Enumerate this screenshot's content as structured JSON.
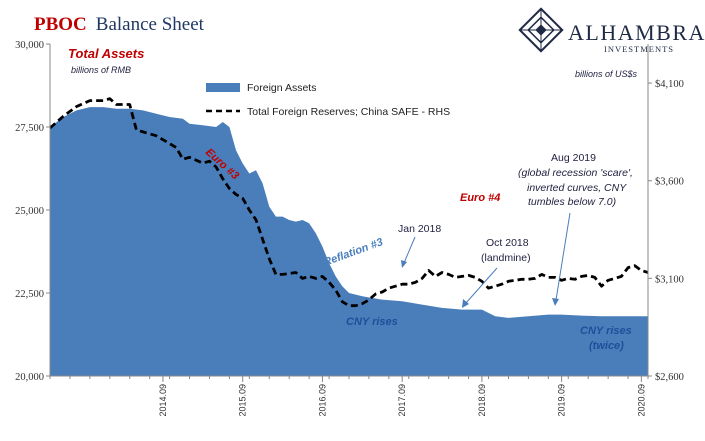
{
  "title": {
    "part1": "PBOC",
    "part2": "Balance Sheet"
  },
  "logo": {
    "name": "ALHAMBRA",
    "subtitle": "INVESTMENTS",
    "icon": "diamond-lattice-icon"
  },
  "left_axis": {
    "label": "Total Assets",
    "sublabel": "billions of RMB"
  },
  "right_axis": {
    "label": "billions of US$s"
  },
  "legend": {
    "area_label": "Foreign Assets",
    "line_label": "Total Foreign Reserves; China SAFE - RHS"
  },
  "annotations": {
    "euro3": "Euro #3",
    "euro4": "Euro #4",
    "reflation3": "Reflation #3",
    "jan2018": "Jan 2018",
    "oct2018_line1": "Oct 2018",
    "oct2018_line2": "(landmine)",
    "aug2019_line1": "Aug 2019",
    "aug2019_line2": "(global recession 'scare',",
    "aug2019_line3": "inverted curves, CNY",
    "aug2019_line4": "tumbles below 7.0)",
    "cny_rises1": "CNY rises",
    "cny_rises2_line1": "CNY rises",
    "cny_rises2_line2": "(twice)"
  },
  "colors": {
    "area": "#4a7ebb",
    "line": "#000000",
    "title_red": "#c00000",
    "title_blue": "#1f3864"
  },
  "chart_data": {
    "type": "area",
    "x_unit": "month",
    "x_range": [
      "2013-04",
      "2020-10"
    ],
    "left_ylim": [
      20000,
      30000
    ],
    "right_ylim": [
      2600,
      4300
    ],
    "left_ticks": [
      "20,000",
      "22,500",
      "25,000",
      "27,500",
      "30,000"
    ],
    "right_ticks": [
      "$2,600",
      "$3,100",
      "$3,600",
      "$4,100"
    ],
    "x_ticks": [
      "2014.09",
      "2015.09",
      "2016.09",
      "2017.09",
      "2018.09",
      "2019.09",
      "2020.09"
    ],
    "grid": false,
    "legend_position": "top-left",
    "series": [
      {
        "name": "Foreign Assets",
        "axis": "left",
        "kind": "area",
        "points": [
          [
            "2013-04",
            27500
          ],
          [
            "2013-06",
            27800
          ],
          [
            "2013-08",
            28000
          ],
          [
            "2013-10",
            28100
          ],
          [
            "2013-12",
            28100
          ],
          [
            "2014-02",
            28050
          ],
          [
            "2014-04",
            28050
          ],
          [
            "2014-06",
            28000
          ],
          [
            "2014-08",
            27900
          ],
          [
            "2014-10",
            27800
          ],
          [
            "2014-12",
            27750
          ],
          [
            "2015-01",
            27600
          ],
          [
            "2015-03",
            27550
          ],
          [
            "2015-05",
            27500
          ],
          [
            "2015-06",
            27650
          ],
          [
            "2015-07",
            27500
          ],
          [
            "2015-08",
            26800
          ],
          [
            "2015-09",
            26400
          ],
          [
            "2015-10",
            26100
          ],
          [
            "2015-11",
            26200
          ],
          [
            "2015-12",
            25800
          ],
          [
            "2016-01",
            25100
          ],
          [
            "2016-02",
            24800
          ],
          [
            "2016-03",
            24800
          ],
          [
            "2016-04",
            24700
          ],
          [
            "2016-05",
            24650
          ],
          [
            "2016-06",
            24700
          ],
          [
            "2016-07",
            24600
          ],
          [
            "2016-08",
            24300
          ],
          [
            "2016-09",
            23900
          ],
          [
            "2016-10",
            23400
          ],
          [
            "2016-11",
            23000
          ],
          [
            "2016-12",
            22700
          ],
          [
            "2017-01",
            22500
          ],
          [
            "2017-03",
            22400
          ],
          [
            "2017-06",
            22300
          ],
          [
            "2017-09",
            22250
          ],
          [
            "2017-12",
            22150
          ],
          [
            "2018-03",
            22050
          ],
          [
            "2018-06",
            22000
          ],
          [
            "2018-09",
            22000
          ],
          [
            "2018-11",
            21800
          ],
          [
            "2019-01",
            21750
          ],
          [
            "2019-04",
            21800
          ],
          [
            "2019-07",
            21850
          ],
          [
            "2019-09",
            21850
          ],
          [
            "2019-12",
            21820
          ],
          [
            "2020-03",
            21800
          ],
          [
            "2020-06",
            21800
          ],
          [
            "2020-08",
            21800
          ],
          [
            "2020-10",
            21800
          ]
        ]
      },
      {
        "name": "Total Foreign Reserves; China SAFE - RHS",
        "axis": "right",
        "kind": "line",
        "points": [
          [
            "2013-04",
            3870
          ],
          [
            "2013-06",
            3930
          ],
          [
            "2013-08",
            3980
          ],
          [
            "2013-10",
            4010
          ],
          [
            "2013-12",
            4010
          ],
          [
            "2014-01",
            4020
          ],
          [
            "2014-02",
            3990
          ],
          [
            "2014-04",
            3990
          ],
          [
            "2014-05",
            3860
          ],
          [
            "2014-06",
            3850
          ],
          [
            "2014-08",
            3830
          ],
          [
            "2014-09",
            3810
          ],
          [
            "2014-10",
            3790
          ],
          [
            "2014-11",
            3770
          ],
          [
            "2014-12",
            3710
          ],
          [
            "2015-01",
            3720
          ],
          [
            "2015-03",
            3690
          ],
          [
            "2015-04",
            3700
          ],
          [
            "2015-05",
            3670
          ],
          [
            "2015-06",
            3610
          ],
          [
            "2015-07",
            3560
          ],
          [
            "2015-08",
            3530
          ],
          [
            "2015-09",
            3510
          ],
          [
            "2015-10",
            3450
          ],
          [
            "2015-11",
            3400
          ],
          [
            "2015-12",
            3300
          ],
          [
            "2016-01",
            3200
          ],
          [
            "2016-02",
            3120
          ],
          [
            "2016-03",
            3120
          ],
          [
            "2016-04",
            3125
          ],
          [
            "2016-05",
            3130
          ],
          [
            "2016-06",
            3100
          ],
          [
            "2016-07",
            3110
          ],
          [
            "2016-08",
            3100
          ],
          [
            "2016-09",
            3110
          ],
          [
            "2016-10",
            3080
          ],
          [
            "2016-11",
            3040
          ],
          [
            "2016-12",
            2980
          ],
          [
            "2017-01",
            2960
          ],
          [
            "2017-02",
            2960
          ],
          [
            "2017-03",
            2970
          ],
          [
            "2017-04",
            2990
          ],
          [
            "2017-05",
            3020
          ],
          [
            "2017-06",
            3030
          ],
          [
            "2017-07",
            3050
          ],
          [
            "2017-08",
            3060
          ],
          [
            "2017-09",
            3070
          ],
          [
            "2017-10",
            3070
          ],
          [
            "2017-11",
            3080
          ],
          [
            "2017-12",
            3100
          ],
          [
            "2018-01",
            3140
          ],
          [
            "2018-02",
            3110
          ],
          [
            "2018-03",
            3130
          ],
          [
            "2018-04",
            3120
          ],
          [
            "2018-05",
            3105
          ],
          [
            "2018-06",
            3110
          ],
          [
            "2018-07",
            3115
          ],
          [
            "2018-08",
            3105
          ],
          [
            "2018-09",
            3085
          ],
          [
            "2018-10",
            3050
          ],
          [
            "2018-11",
            3060
          ],
          [
            "2018-12",
            3070
          ],
          [
            "2019-01",
            3085
          ],
          [
            "2019-02",
            3090
          ],
          [
            "2019-03",
            3095
          ],
          [
            "2019-04",
            3095
          ],
          [
            "2019-05",
            3100
          ],
          [
            "2019-06",
            3120
          ],
          [
            "2019-07",
            3105
          ],
          [
            "2019-08",
            3105
          ],
          [
            "2019-09",
            3090
          ],
          [
            "2019-10",
            3100
          ],
          [
            "2019-11",
            3095
          ],
          [
            "2019-12",
            3110
          ],
          [
            "2020-01",
            3115
          ],
          [
            "2020-02",
            3105
          ],
          [
            "2020-03",
            3060
          ],
          [
            "2020-04",
            3090
          ],
          [
            "2020-05",
            3100
          ],
          [
            "2020-06",
            3110
          ],
          [
            "2020-07",
            3155
          ],
          [
            "2020-08",
            3165
          ],
          [
            "2020-09",
            3140
          ],
          [
            "2020-10",
            3130
          ]
        ]
      }
    ]
  }
}
